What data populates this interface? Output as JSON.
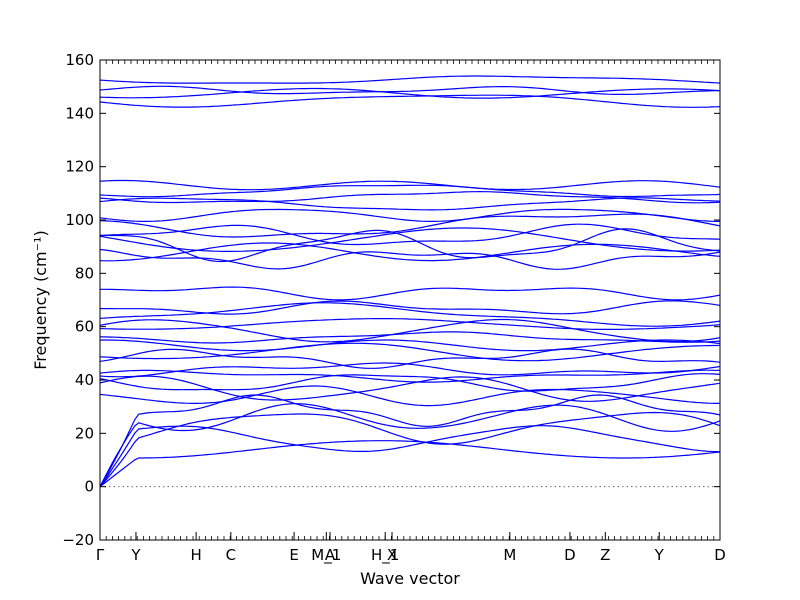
{
  "chart_data": {
    "type": "line",
    "xlabel": "Wave vector",
    "ylabel": "Frequency (cm⁻¹)",
    "ylim": [
      -20,
      160
    ],
    "yticks": [
      -20,
      0,
      20,
      40,
      60,
      80,
      100,
      120,
      140,
      160
    ],
    "xlim": [
      0,
      1
    ],
    "xticks": [
      {
        "label": "Γ",
        "x": 0.0
      },
      {
        "label": "Y",
        "x": 0.058
      },
      {
        "label": "H",
        "x": 0.155
      },
      {
        "label": "C",
        "x": 0.211
      },
      {
        "label": "E",
        "x": 0.313
      },
      {
        "label": "M_1",
        "x": 0.365
      },
      {
        "label": "A",
        "x": 0.371
      },
      {
        "label": "H_1",
        "x": 0.46
      },
      {
        "label": "X",
        "x": 0.471
      },
      {
        "label": "M",
        "x": 0.661
      },
      {
        "label": "D",
        "x": 0.758
      },
      {
        "label": "Z",
        "x": 0.815
      },
      {
        "label": "Y",
        "x": 0.902
      },
      {
        "label": "D",
        "x": 1.0
      }
    ],
    "zero_line": {
      "y": 0,
      "style": "dotted"
    },
    "series_color": "#0000ff",
    "band_groups": [
      {
        "base": [
          152.5,
          148.5,
          147.5,
          145.0
        ],
        "amp": 1.5
      },
      {
        "base": [
          113.0,
          111.0,
          108.5,
          106.0
        ],
        "amp": 2.2
      },
      {
        "base": [
          102.0,
          98.0,
          94.0,
          92.5,
          90.5,
          88.0,
          85.5
        ],
        "amp": 3.5
      },
      {
        "base": [
          73.0,
          67.0,
          64.5,
          61.0,
          58.5,
          56.0,
          53.0,
          50.5,
          48.0
        ],
        "amp": 3.0
      },
      {
        "base": [
          44.0,
          41.5,
          39.0,
          36.5,
          34.0
        ],
        "amp": 3.0
      },
      {
        "base": [
          28.5,
          26.0,
          22.5,
          18.0,
          14.0
        ],
        "amp": 4.0
      }
    ]
  }
}
